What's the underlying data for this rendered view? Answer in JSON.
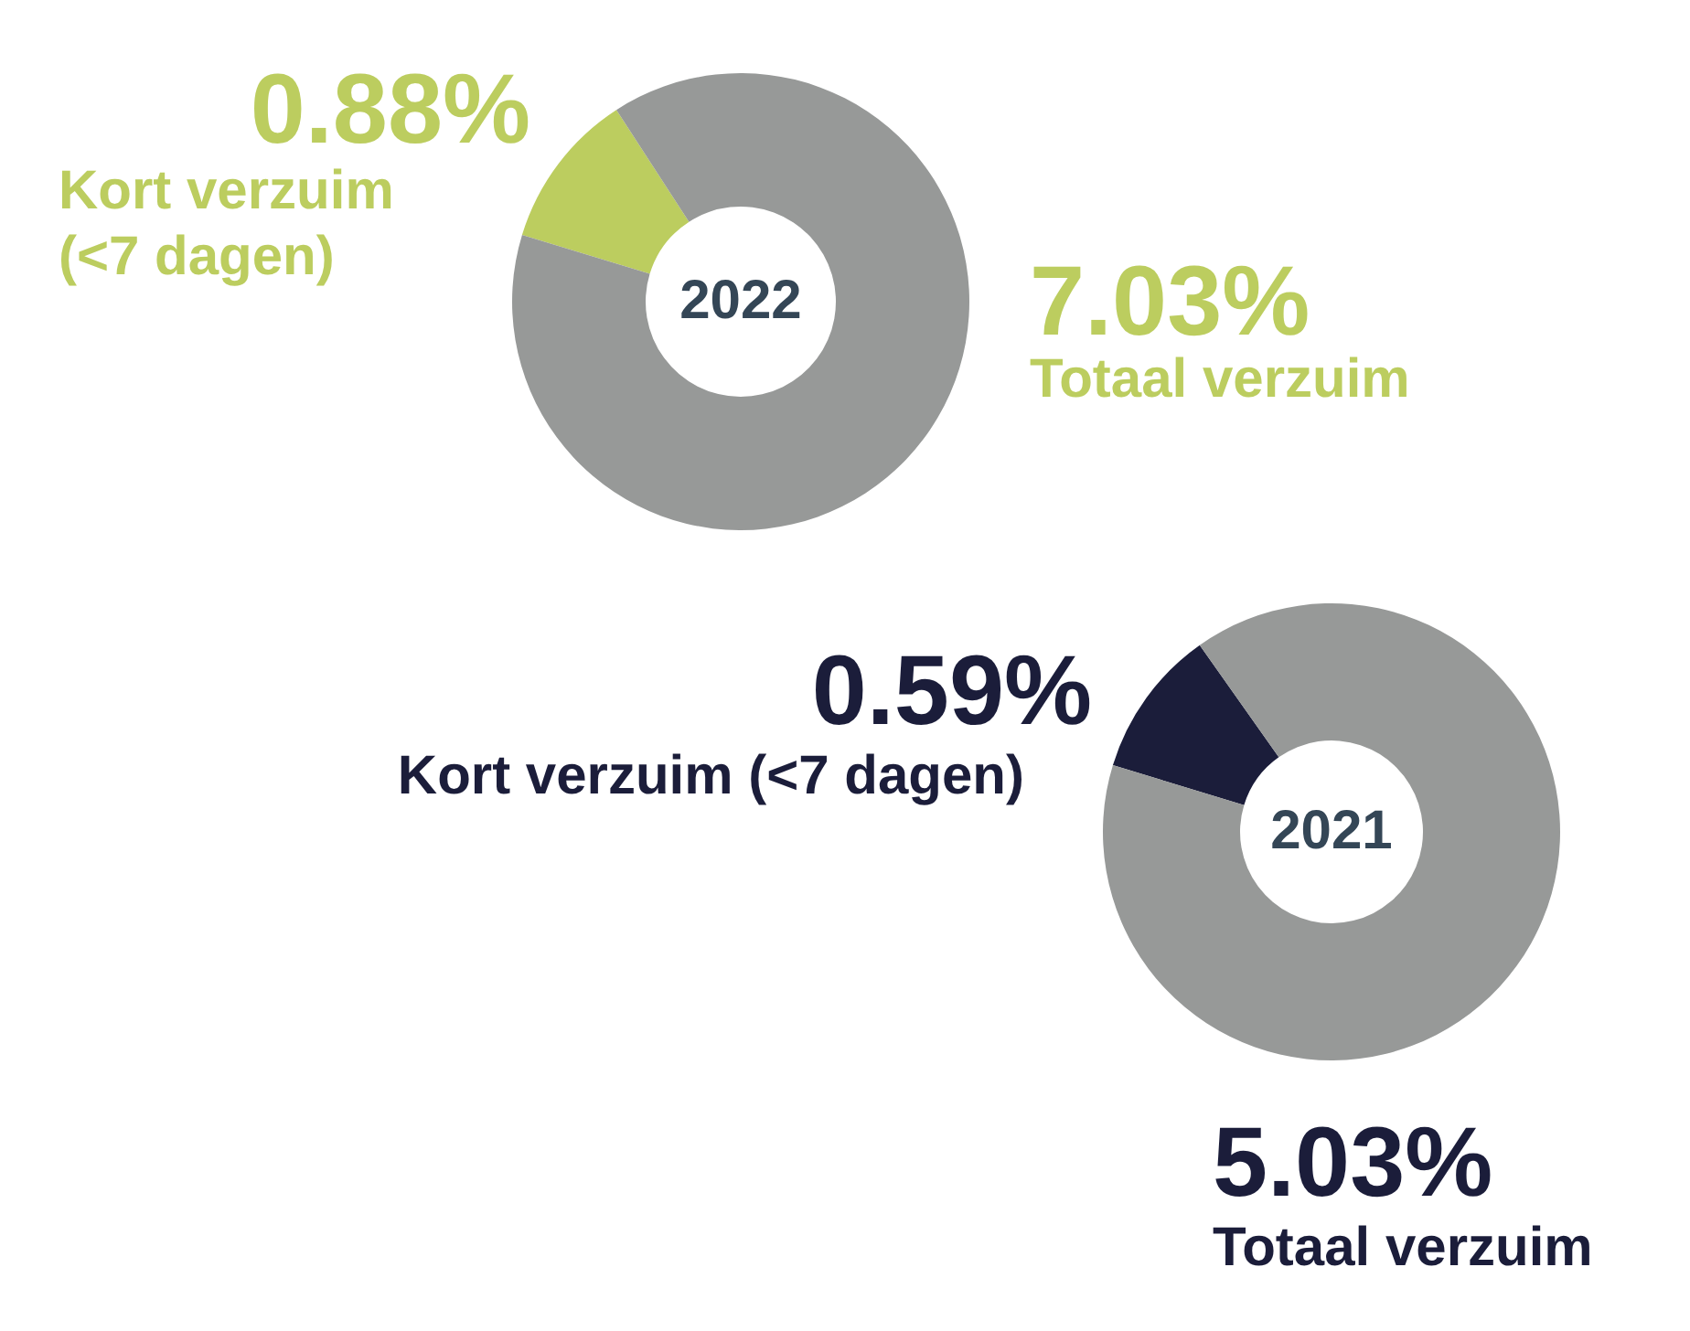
{
  "chart_data": [
    {
      "type": "donut",
      "title": "2022",
      "categories": [
        "Kort verzuim (<7 dagen)",
        "Totaal verzuim"
      ],
      "values": [
        0.88,
        7.03
      ],
      "colors": [
        "#bccd5f",
        "#979998"
      ],
      "value_labels": [
        "0.88%",
        "7.03%"
      ]
    },
    {
      "type": "donut",
      "title": "2021",
      "categories": [
        "Kort verzuim (<7 dagen)",
        "Totaal verzuim"
      ],
      "values": [
        0.59,
        5.03
      ],
      "colors": [
        "#1b1d3a",
        "#979998"
      ],
      "value_labels": [
        "0.59%",
        "5.03%"
      ]
    }
  ]
}
